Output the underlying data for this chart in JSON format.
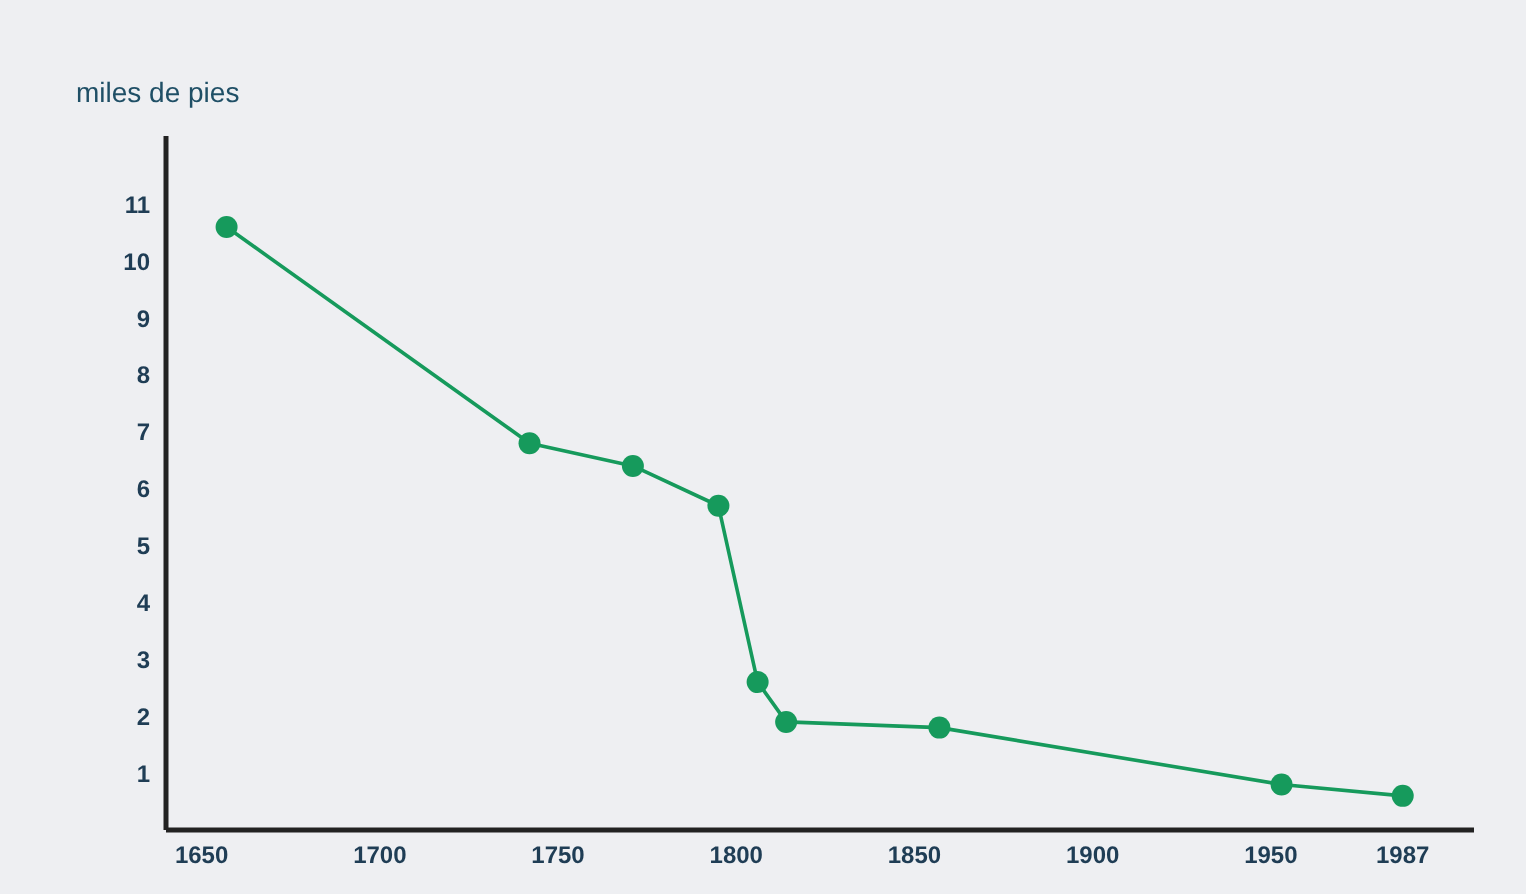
{
  "chart_data": {
    "type": "line",
    "ylabel": "miles de pies",
    "x": [
      1657,
      1742,
      1771,
      1795,
      1806,
      1814,
      1857,
      1953,
      1987
    ],
    "series": [
      {
        "color": "#169a5c",
        "values": [
          10.6,
          6.8,
          6.4,
          5.7,
          2.6,
          1.9,
          1.8,
          0.8,
          0.6
        ]
      }
    ],
    "xlim": [
      1640,
      2007
    ],
    "xticks": [
      1650,
      1700,
      1750,
      1800,
      1850,
      1900,
      1950,
      1987
    ],
    "ylim": [
      0,
      12.2
    ],
    "yticks": [
      1,
      2,
      3,
      4,
      5,
      6,
      7,
      8,
      9,
      10,
      11
    ],
    "grid": false,
    "legend": false,
    "marker": "circle",
    "line_style": "solid"
  }
}
